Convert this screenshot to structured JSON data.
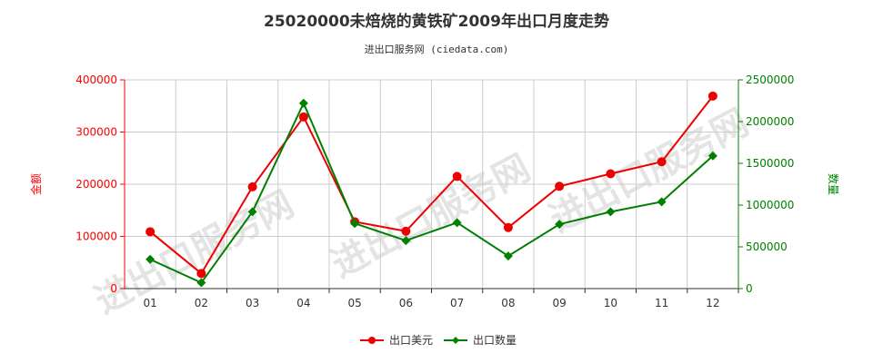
{
  "chart_data": {
    "type": "line",
    "title": "25020000未焙烧的黄铁矿2009年出口月度走势",
    "subtitle": "进出口服务网 (ciedata.com)",
    "watermark": "进出口服务网",
    "categories": [
      "01",
      "02",
      "03",
      "04",
      "05",
      "06",
      "07",
      "08",
      "09",
      "10",
      "11",
      "12"
    ],
    "y_left": {
      "label": "金额",
      "min": 0,
      "max": 400000,
      "ticks": [
        0,
        100000,
        200000,
        300000,
        400000
      ],
      "color": "#ff0000"
    },
    "y_right": {
      "label": "数量",
      "min": 0,
      "max": 2500000,
      "ticks": [
        0,
        500000,
        1000000,
        1500000,
        2000000,
        2500000
      ],
      "color": "#008000"
    },
    "grid": true,
    "legend_position": "bottom-center",
    "series": [
      {
        "name": "出口美元",
        "axis": "left",
        "color": "#ee0000",
        "values": [
          109000,
          29000,
          195000,
          329000,
          128000,
          110000,
          215000,
          117000,
          196000,
          220000,
          243000,
          369000
        ]
      },
      {
        "name": "出口数量",
        "axis": "right",
        "color": "#008000",
        "values": [
          350000,
          70000,
          920000,
          2220000,
          780000,
          575000,
          790000,
          390000,
          770000,
          920000,
          1040000,
          1590000
        ]
      }
    ]
  }
}
